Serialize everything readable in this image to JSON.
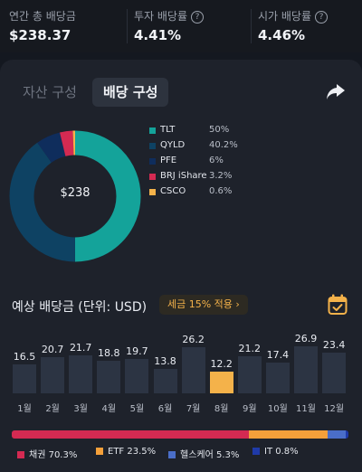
{
  "stats": [
    {
      "label": "연간 총 배당금",
      "value": "$238.37",
      "help": false
    },
    {
      "label": "투자 배당률",
      "value": "4.41%",
      "help": true
    },
    {
      "label": "시가 배당률",
      "value": "4.46%",
      "help": true
    }
  ],
  "help_icon_glyph": "?",
  "tabs": [
    {
      "label": "자산 구성",
      "active": false
    },
    {
      "label": "배당 구성",
      "active": true
    }
  ],
  "share_icon": "share-icon",
  "donut": {
    "center_label": "$238",
    "slices": [
      {
        "name": "TLT",
        "percent": "50%",
        "value": 50,
        "color": "#14a39a"
      },
      {
        "name": "QYLD",
        "percent": "40.2%",
        "value": 40.2,
        "color": "#0e4263"
      },
      {
        "name": "PFE",
        "percent": "6%",
        "value": 6,
        "color": "#0f2d5c"
      },
      {
        "name": "BRJ iShares",
        "percent": "3.2%",
        "value": 3.2,
        "color": "#d42a52"
      },
      {
        "name": "CSCO",
        "percent": "0.6%",
        "value": 0.6,
        "color": "#f4b24a"
      }
    ]
  },
  "expected": {
    "title": "예상 배당금 (단위: USD)",
    "tax_badge": "세금 15% 적용 ›",
    "calendar_icon": "calendar-check-icon"
  },
  "chart_data": {
    "type": "bar",
    "categories": [
      "1월",
      "2월",
      "3월",
      "4월",
      "5월",
      "6월",
      "7월",
      "8월",
      "9월",
      "10월",
      "11월",
      "12월"
    ],
    "values": [
      16.5,
      20.7,
      21.7,
      18.8,
      19.7,
      13.8,
      26.2,
      12.2,
      21.2,
      17.4,
      26.9,
      23.4
    ],
    "highlight_index": 7,
    "colors": {
      "bar": "#2c3443",
      "highlight": "#f4b24a"
    }
  },
  "allocation": [
    {
      "label": "채권 70.3%",
      "value": 70.3,
      "color": "#d42a52"
    },
    {
      "label": "ETF 23.5%",
      "value": 23.5,
      "color": "#f4a03a"
    },
    {
      "label": "헬스케어 5.3%",
      "value": 5.3,
      "color": "#4a6ec8"
    },
    {
      "label": "IT 0.8%",
      "value": 0.8,
      "color": "#1f3aa8"
    }
  ]
}
